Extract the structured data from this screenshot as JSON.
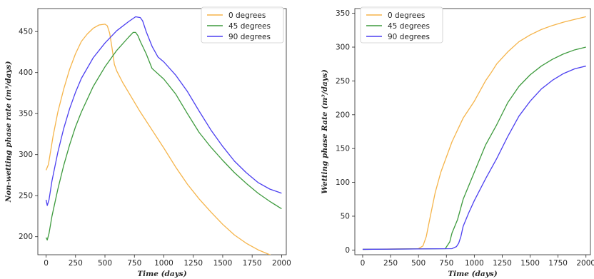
{
  "colors": {
    "0 degrees": "#f5b44a",
    "45 degrees": "#3d9a3d",
    "90 degrees": "#4b3ff0"
  },
  "chart_data": [
    {
      "type": "line",
      "xlabel": "Time (days)",
      "ylabel": "Non-wetting phase rate (m³/days)",
      "xlim": [
        -70,
        2040
      ],
      "ylim": [
        178,
        478
      ],
      "xticks": [
        0,
        250,
        500,
        750,
        1000,
        1250,
        1500,
        1750,
        2000
      ],
      "yticks": [
        200,
        250,
        300,
        350,
        400,
        450
      ],
      "legend": "top-right",
      "grid": false,
      "series": [
        {
          "name": "0 degrees",
          "x": [
            0,
            20,
            60,
            100,
            150,
            200,
            250,
            300,
            350,
            400,
            450,
            500,
            520,
            540,
            560,
            580,
            600,
            650,
            700,
            800,
            900,
            1000,
            1100,
            1200,
            1300,
            1400,
            1500,
            1600,
            1700,
            1800,
            1900,
            2000
          ],
          "y": [
            281,
            288,
            323,
            352,
            380,
            404,
            423,
            438,
            447,
            454,
            458,
            459,
            457,
            448,
            430,
            410,
            402,
            388,
            376,
            352,
            330,
            308,
            285,
            264,
            246,
            230,
            215,
            202,
            192,
            184,
            178,
            172
          ]
        },
        {
          "name": "45 degrees",
          "x": [
            0,
            10,
            25,
            50,
            100,
            150,
            200,
            250,
            300,
            400,
            500,
            600,
            700,
            740,
            760,
            780,
            800,
            850,
            900,
            1000,
            1100,
            1200,
            1300,
            1400,
            1500,
            1600,
            1700,
            1800,
            1900,
            2000
          ],
          "y": [
            199,
            196,
            204,
            225,
            258,
            287,
            312,
            334,
            352,
            383,
            407,
            427,
            443,
            449,
            449,
            445,
            438,
            423,
            405,
            392,
            374,
            350,
            327,
            309,
            293,
            278,
            265,
            253,
            243,
            234
          ]
        },
        {
          "name": "90 degrees",
          "x": [
            0,
            10,
            25,
            50,
            100,
            150,
            200,
            250,
            300,
            400,
            500,
            600,
            700,
            760,
            800,
            820,
            850,
            900,
            950,
            1000,
            1100,
            1200,
            1300,
            1400,
            1500,
            1600,
            1700,
            1800,
            1900,
            2000
          ],
          "y": [
            245,
            238,
            245,
            268,
            303,
            332,
            356,
            376,
            393,
            418,
            436,
            451,
            462,
            468,
            467,
            463,
            450,
            432,
            419,
            413,
            397,
            377,
            353,
            330,
            310,
            292,
            278,
            266,
            258,
            253
          ]
        }
      ]
    },
    {
      "type": "line",
      "xlabel": "Time (days)",
      "ylabel": "Wetting phase Rate (m³/days)",
      "xlim": [
        -70,
        2040
      ],
      "ylim": [
        -7,
        357
      ],
      "xticks": [
        0,
        250,
        500,
        750,
        1000,
        1250,
        1500,
        1750,
        2000
      ],
      "yticks": [
        0,
        50,
        100,
        150,
        200,
        250,
        300,
        350
      ],
      "legend": "top-left",
      "grid": false,
      "series": [
        {
          "name": "0 degrees",
          "x": [
            0,
            500,
            540,
            570,
            600,
            650,
            700,
            800,
            900,
            1000,
            1100,
            1150,
            1200,
            1300,
            1400,
            1500,
            1600,
            1700,
            1800,
            1900,
            2000
          ],
          "y": [
            1,
            2,
            6,
            20,
            45,
            85,
            115,
            160,
            195,
            220,
            250,
            262,
            275,
            293,
            308,
            318,
            326,
            332,
            337,
            341,
            345
          ]
        },
        {
          "name": "45 degrees",
          "x": [
            0,
            740,
            780,
            800,
            850,
            900,
            1000,
            1100,
            1200,
            1300,
            1400,
            1500,
            1600,
            1700,
            1800,
            1900,
            2000
          ],
          "y": [
            1,
            2,
            12,
            25,
            45,
            75,
            115,
            155,
            185,
            218,
            242,
            259,
            272,
            282,
            290,
            296,
            300
          ]
        },
        {
          "name": "90 degrees",
          "x": [
            0,
            800,
            840,
            860,
            880,
            900,
            950,
            1000,
            1100,
            1200,
            1300,
            1400,
            1500,
            1600,
            1700,
            1800,
            1900,
            2000
          ],
          "y": [
            1,
            2,
            5,
            10,
            20,
            35,
            55,
            73,
            105,
            135,
            168,
            198,
            220,
            238,
            251,
            261,
            268,
            272
          ]
        }
      ]
    }
  ]
}
